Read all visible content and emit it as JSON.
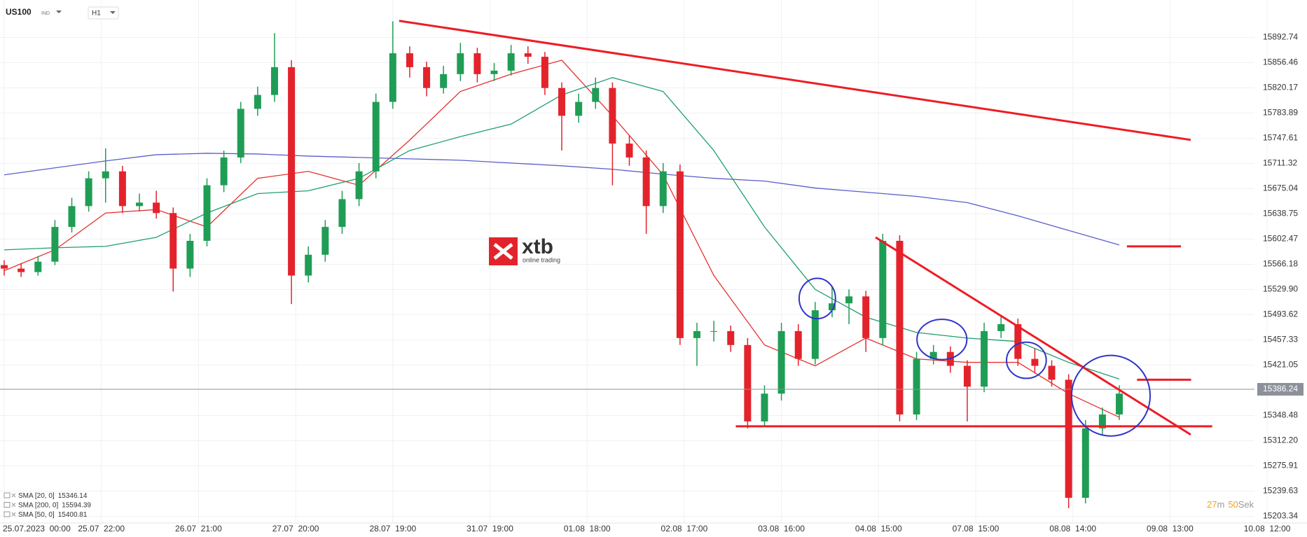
{
  "header": {
    "symbol": "US100",
    "exchange": "IND",
    "timeframe": "H1"
  },
  "logo": {
    "name": "xtb",
    "tagline": "online trading"
  },
  "chart_data": {
    "type": "candlestick",
    "x": [
      0,
      4,
      8,
      12,
      16,
      20,
      24,
      28,
      32,
      36,
      40,
      44,
      48,
      52,
      56,
      60,
      64,
      68,
      72,
      76,
      80,
      84,
      88,
      92,
      96,
      100,
      104,
      108,
      112,
      116,
      120,
      124,
      128,
      132,
      136,
      140,
      144,
      148,
      152,
      156,
      160,
      164,
      168,
      172,
      176,
      180,
      184,
      188,
      192,
      196,
      200,
      204,
      208,
      212,
      216,
      220,
      224,
      228,
      232,
      236,
      240,
      244,
      248,
      252,
      256,
      260,
      264
    ],
    "open": [
      15565,
      15560,
      15555,
      15570,
      15620,
      15650,
      15690,
      15700,
      15650,
      15655,
      15640,
      15560,
      15600,
      15680,
      15720,
      15790,
      15810,
      15850,
      15550,
      15580,
      15620,
      15660,
      15700,
      15800,
      15870,
      15850,
      15820,
      15840,
      15870,
      15840,
      15845,
      15870,
      15865,
      15820,
      15780,
      15800,
      15820,
      15740,
      15720,
      15650,
      15700,
      15460,
      15470,
      15470,
      15450,
      15340,
      15380,
      15470,
      15430,
      15500,
      15510,
      15520,
      15460,
      15600,
      15350,
      15430,
      15440,
      15420,
      15390,
      15470,
      15480,
      15430,
      15420,
      15400,
      15230,
      15330,
      15350
    ],
    "high": [
      15572,
      15568,
      15578,
      15630,
      15662,
      15700,
      15733,
      15708,
      15668,
      15672,
      15648,
      15610,
      15690,
      15730,
      15800,
      15822,
      15899,
      15860,
      15592,
      15630,
      15672,
      15712,
      15812,
      15916,
      15880,
      15858,
      15852,
      15885,
      15878,
      15856,
      15882,
      15880,
      15872,
      15828,
      15812,
      15835,
      15828,
      15752,
      15730,
      15712,
      15710,
      15482,
      15485,
      15478,
      15460,
      15392,
      15482,
      15480,
      15512,
      15535,
      15530,
      15528,
      15610,
      15608,
      15440,
      15450,
      15448,
      15428,
      15482,
      15492,
      15488,
      15445,
      15428,
      15408,
      15342,
      15360,
      15392
    ],
    "low": [
      15550,
      15548,
      15550,
      15565,
      15612,
      15642,
      15655,
      15640,
      15642,
      15632,
      15527,
      15548,
      15592,
      15670,
      15712,
      15780,
      15800,
      15509,
      15540,
      15570,
      15610,
      15650,
      15690,
      15790,
      15835,
      15808,
      15812,
      15830,
      15828,
      15830,
      15838,
      15855,
      15810,
      15730,
      15770,
      15790,
      15680,
      15708,
      15610,
      15640,
      15450,
      15420,
      15455,
      15440,
      15330,
      15332,
      15370,
      15420,
      15422,
      15490,
      15480,
      15440,
      15450,
      15340,
      15342,
      15422,
      15410,
      15340,
      15382,
      15460,
      15420,
      15410,
      15390,
      15215,
      15222,
      15320,
      15342
    ],
    "close": [
      15560,
      15555,
      15570,
      15620,
      15650,
      15690,
      15700,
      15650,
      15655,
      15640,
      15560,
      15600,
      15680,
      15720,
      15790,
      15810,
      15850,
      15550,
      15580,
      15620,
      15660,
      15700,
      15800,
      15870,
      15850,
      15820,
      15840,
      15870,
      15840,
      15845,
      15870,
      15865,
      15820,
      15780,
      15800,
      15820,
      15740,
      15720,
      15650,
      15700,
      15460,
      15470,
      15470,
      15450,
      15340,
      15380,
      15470,
      15430,
      15500,
      15510,
      15520,
      15460,
      15600,
      15350,
      15430,
      15440,
      15420,
      15390,
      15470,
      15480,
      15430,
      15420,
      15400,
      15230,
      15330,
      15350,
      15380
    ],
    "up_color": "#1f9d55",
    "down_color": "#e3232c",
    "xlim": [
      -1,
      296
    ],
    "ylim": [
      15193.75,
      15946.7
    ],
    "xticks": [
      {
        "value": 0,
        "label": "25.07.2023  00:00"
      },
      {
        "value": 23,
        "label": "25.07  22:00"
      },
      {
        "value": 46,
        "label": "26.07  21:00"
      },
      {
        "value": 69,
        "label": "27.07  20:00"
      },
      {
        "value": 92,
        "label": "28.07  19:00"
      },
      {
        "value": 115,
        "label": "31.07  19:00"
      },
      {
        "value": 138,
        "label": "01.08  18:00"
      },
      {
        "value": 161,
        "label": "02.08  17:00"
      },
      {
        "value": 184,
        "label": "03.08  16:00"
      },
      {
        "value": 207,
        "label": "04.08  15:00"
      },
      {
        "value": 230,
        "label": "07.08  15:00"
      },
      {
        "value": 253,
        "label": "08.08  14:00"
      },
      {
        "value": 276,
        "label": "09.08  13:00"
      },
      {
        "value": 299,
        "label": "10.08  12:00"
      }
    ],
    "yticks": [
      15892.74,
      15856.46,
      15820.17,
      15783.89,
      15747.61,
      15711.32,
      15675.04,
      15638.75,
      15602.47,
      15566.18,
      {
        "value": 15529.9,
        "label": "15529.90"
      },
      15493.62,
      15457.33,
      15421.05,
      15348.48,
      {
        "value": 15312.2,
        "label": "15312.20"
      },
      15275.91,
      15239.63,
      15203.34
    ],
    "grid": true,
    "current_price": {
      "value": 15386.24,
      "color": "#8c9099"
    },
    "indicators": [
      {
        "name": "SMA [20, 0]",
        "value": 15346.14,
        "color": "#e5322d",
        "x": [
          0,
          12,
          24,
          36,
          48,
          60,
          72,
          84,
          96,
          108,
          120,
          132,
          144,
          156,
          168,
          180,
          192,
          204,
          216,
          228,
          240,
          252,
          264
        ],
        "values": [
          15557,
          15587,
          15640,
          15645,
          15620,
          15690,
          15700,
          15680,
          15745,
          15815,
          15840,
          15860,
          15780,
          15695,
          15550,
          15450,
          15420,
          15460,
          15430,
          15425,
          15425,
          15380,
          15346
        ]
      },
      {
        "name": "SMA [200, 0]",
        "value": 15594.39,
        "color": "#5b5fc7",
        "x": [
          0,
          12,
          24,
          36,
          48,
          60,
          72,
          84,
          96,
          108,
          120,
          132,
          144,
          156,
          168,
          180,
          192,
          204,
          216,
          228,
          240,
          252,
          264
        ],
        "values": [
          15695,
          15705,
          15715,
          15724,
          15726,
          15725,
          15722,
          15720,
          15718,
          15716,
          15712,
          15708,
          15703,
          15696,
          15690,
          15686,
          15676,
          15670,
          15664,
          15655,
          15636,
          15615,
          15594
        ]
      },
      {
        "name": "SMA [50, 0]",
        "value": 15400.81,
        "color": "#1f9e6e",
        "x": [
          0,
          12,
          24,
          36,
          48,
          60,
          72,
          84,
          96,
          108,
          120,
          132,
          144,
          156,
          168,
          180,
          192,
          204,
          216,
          228,
          240,
          252,
          264
        ],
        "values": [
          15587,
          15590,
          15592,
          15605,
          15640,
          15668,
          15672,
          15690,
          15730,
          15750,
          15768,
          15810,
          15835,
          15815,
          15730,
          15620,
          15530,
          15490,
          15468,
          15460,
          15455,
          15425,
          15401
        ]
      }
    ],
    "trendlines": [
      {
        "x": [
          93.5,
          280.9
        ],
        "y": [
          15916.7,
          15745.3
        ],
        "color": "#ee1c25"
      },
      {
        "x": [
          206.3,
          280.9
        ],
        "y": [
          15605,
          15321
        ],
        "color": "#ee1c25"
      },
      {
        "x": [
          173.2,
          286
        ],
        "y": [
          15333,
          15333
        ],
        "color": "#ee1c25"
      },
      {
        "x": [
          265.8,
          278.6
        ],
        "y": [
          15592,
          15592
        ],
        "color": "#ee1c25"
      },
      {
        "x": [
          268.2,
          281
        ],
        "y": [
          15400,
          15400
        ],
        "color": "#ee1c25"
      }
    ],
    "circles": [
      {
        "x": [
          188.2,
          196.8
        ],
        "y": [
          15488,
          15546
        ],
        "color": "#3034c8"
      },
      {
        "x": [
          216.1,
          227.9
        ],
        "y": [
          15429,
          15487
        ],
        "color": "#3034c8"
      },
      {
        "x": [
          237.3,
          246.7
        ],
        "y": [
          15402,
          15454
        ],
        "color": "#3034c8"
      },
      {
        "x": [
          252.7,
          271.3
        ],
        "y": [
          15319,
          15435
        ],
        "color": "#3034c8"
      }
    ],
    "timer": {
      "minutes": 27,
      "minutes_unit": "m",
      "seconds": 50,
      "seconds_unit": "Sek"
    }
  }
}
